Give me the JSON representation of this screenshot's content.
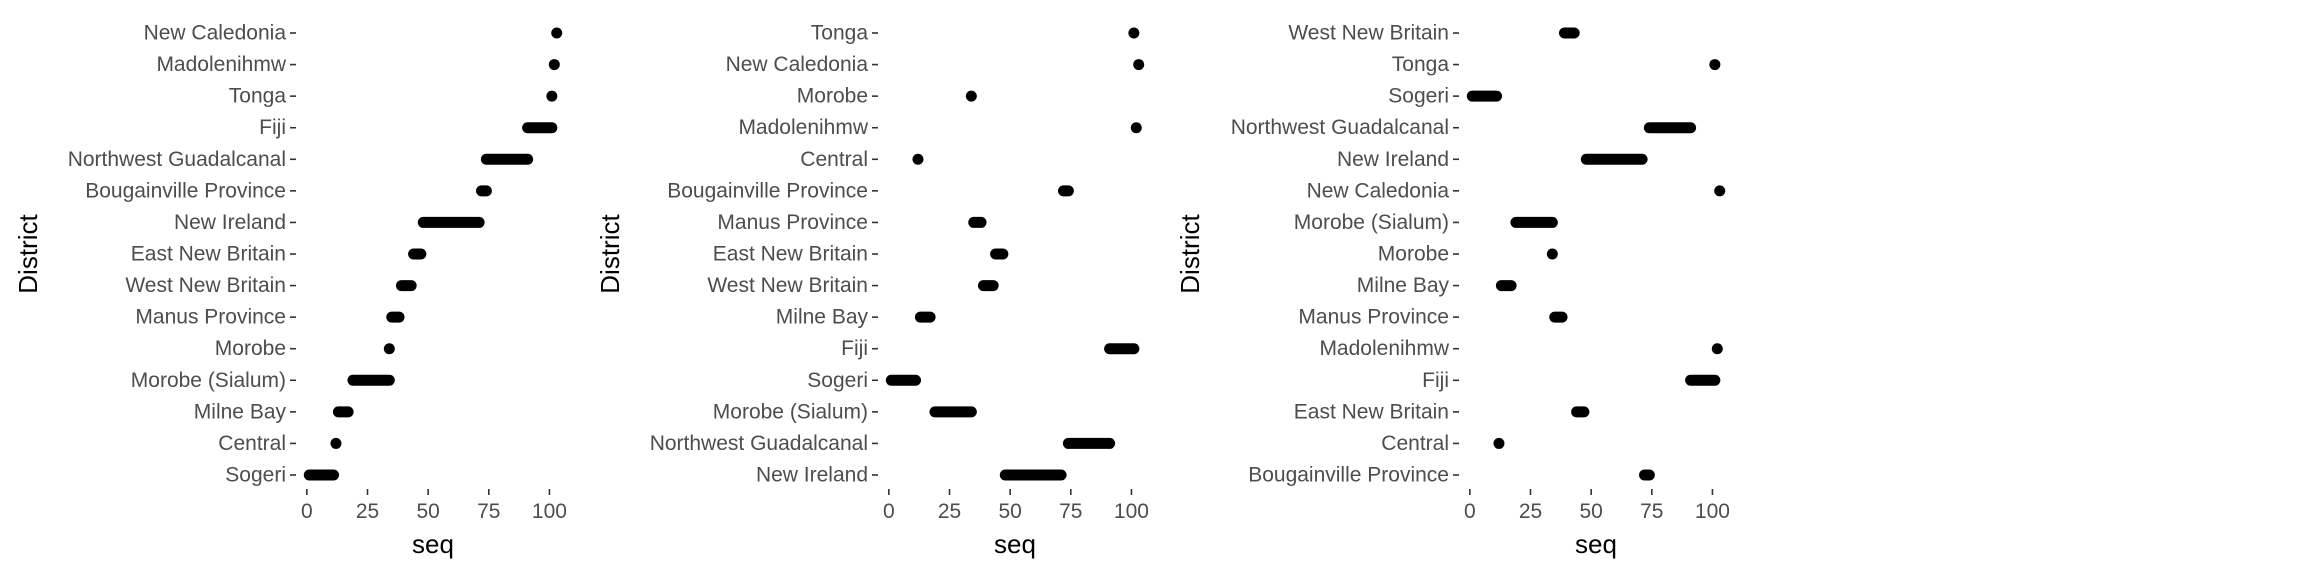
{
  "colors": {
    "mark": "#000000",
    "tick_text": "#4d4d4d",
    "axis_title": "#000000",
    "background": "#ffffff"
  },
  "chart_data": [
    {
      "type": "scatter",
      "xlabel": "seq",
      "ylabel": "District",
      "xlim": [
        -2,
        106
      ],
      "xticks": [
        0,
        25,
        50,
        75,
        100
      ],
      "categories": [
        "New Caledonia",
        "Madolenihmw",
        "Tonga",
        "Fiji",
        "Northwest Guadalcanal",
        "Bougainville Province",
        "New Ireland",
        "East New Britain",
        "West New Britain",
        "Manus Province",
        "Morobe",
        "Morobe (Sialum)",
        "Milne Bay",
        "Central",
        "Sogeri"
      ],
      "ranges": [
        [
          103,
          103
        ],
        [
          102,
          102
        ],
        [
          101,
          101
        ],
        [
          91,
          101
        ],
        [
          74,
          91
        ],
        [
          72,
          74
        ],
        [
          48,
          71
        ],
        [
          44,
          47
        ],
        [
          39,
          43
        ],
        [
          35,
          38
        ],
        [
          34,
          34
        ],
        [
          19,
          34
        ],
        [
          13,
          17
        ],
        [
          12,
          12
        ],
        [
          1,
          11
        ]
      ],
      "grid": false
    },
    {
      "type": "scatter",
      "xlabel": "seq",
      "ylabel": "District",
      "xlim": [
        -2,
        106
      ],
      "xticks": [
        0,
        25,
        50,
        75,
        100
      ],
      "categories": [
        "Tonga",
        "New Caledonia",
        "Morobe",
        "Madolenihmw",
        "Central",
        "Bougainville Province",
        "Manus Province",
        "East New Britain",
        "West New Britain",
        "Milne Bay",
        "Fiji",
        "Sogeri",
        "Morobe (Sialum)",
        "Northwest Guadalcanal",
        "New Ireland"
      ],
      "ranges": [
        [
          101,
          101
        ],
        [
          103,
          103
        ],
        [
          34,
          34
        ],
        [
          102,
          102
        ],
        [
          12,
          12
        ],
        [
          72,
          74
        ],
        [
          35,
          38
        ],
        [
          44,
          47
        ],
        [
          39,
          43
        ],
        [
          13,
          17
        ],
        [
          91,
          101
        ],
        [
          1,
          11
        ],
        [
          19,
          34
        ],
        [
          74,
          91
        ],
        [
          48,
          71
        ]
      ],
      "grid": false
    },
    {
      "type": "scatter",
      "xlabel": "seq",
      "ylabel": "District",
      "xlim": [
        -2,
        106
      ],
      "xticks": [
        0,
        25,
        50,
        75,
        100
      ],
      "categories": [
        "West New Britain",
        "Tonga",
        "Sogeri",
        "Northwest Guadalcanal",
        "New Ireland",
        "New Caledonia",
        "Morobe (Sialum)",
        "Morobe",
        "Milne Bay",
        "Manus Province",
        "Madolenihmw",
        "Fiji",
        "East New Britain",
        "Central",
        "Bougainville Province"
      ],
      "ranges": [
        [
          39,
          43
        ],
        [
          101,
          101
        ],
        [
          1,
          11
        ],
        [
          74,
          91
        ],
        [
          48,
          71
        ],
        [
          103,
          103
        ],
        [
          19,
          34
        ],
        [
          34,
          34
        ],
        [
          13,
          17
        ],
        [
          35,
          38
        ],
        [
          102,
          102
        ],
        [
          91,
          101
        ],
        [
          44,
          47
        ],
        [
          12,
          12
        ],
        [
          72,
          74
        ]
      ],
      "grid": false
    }
  ]
}
